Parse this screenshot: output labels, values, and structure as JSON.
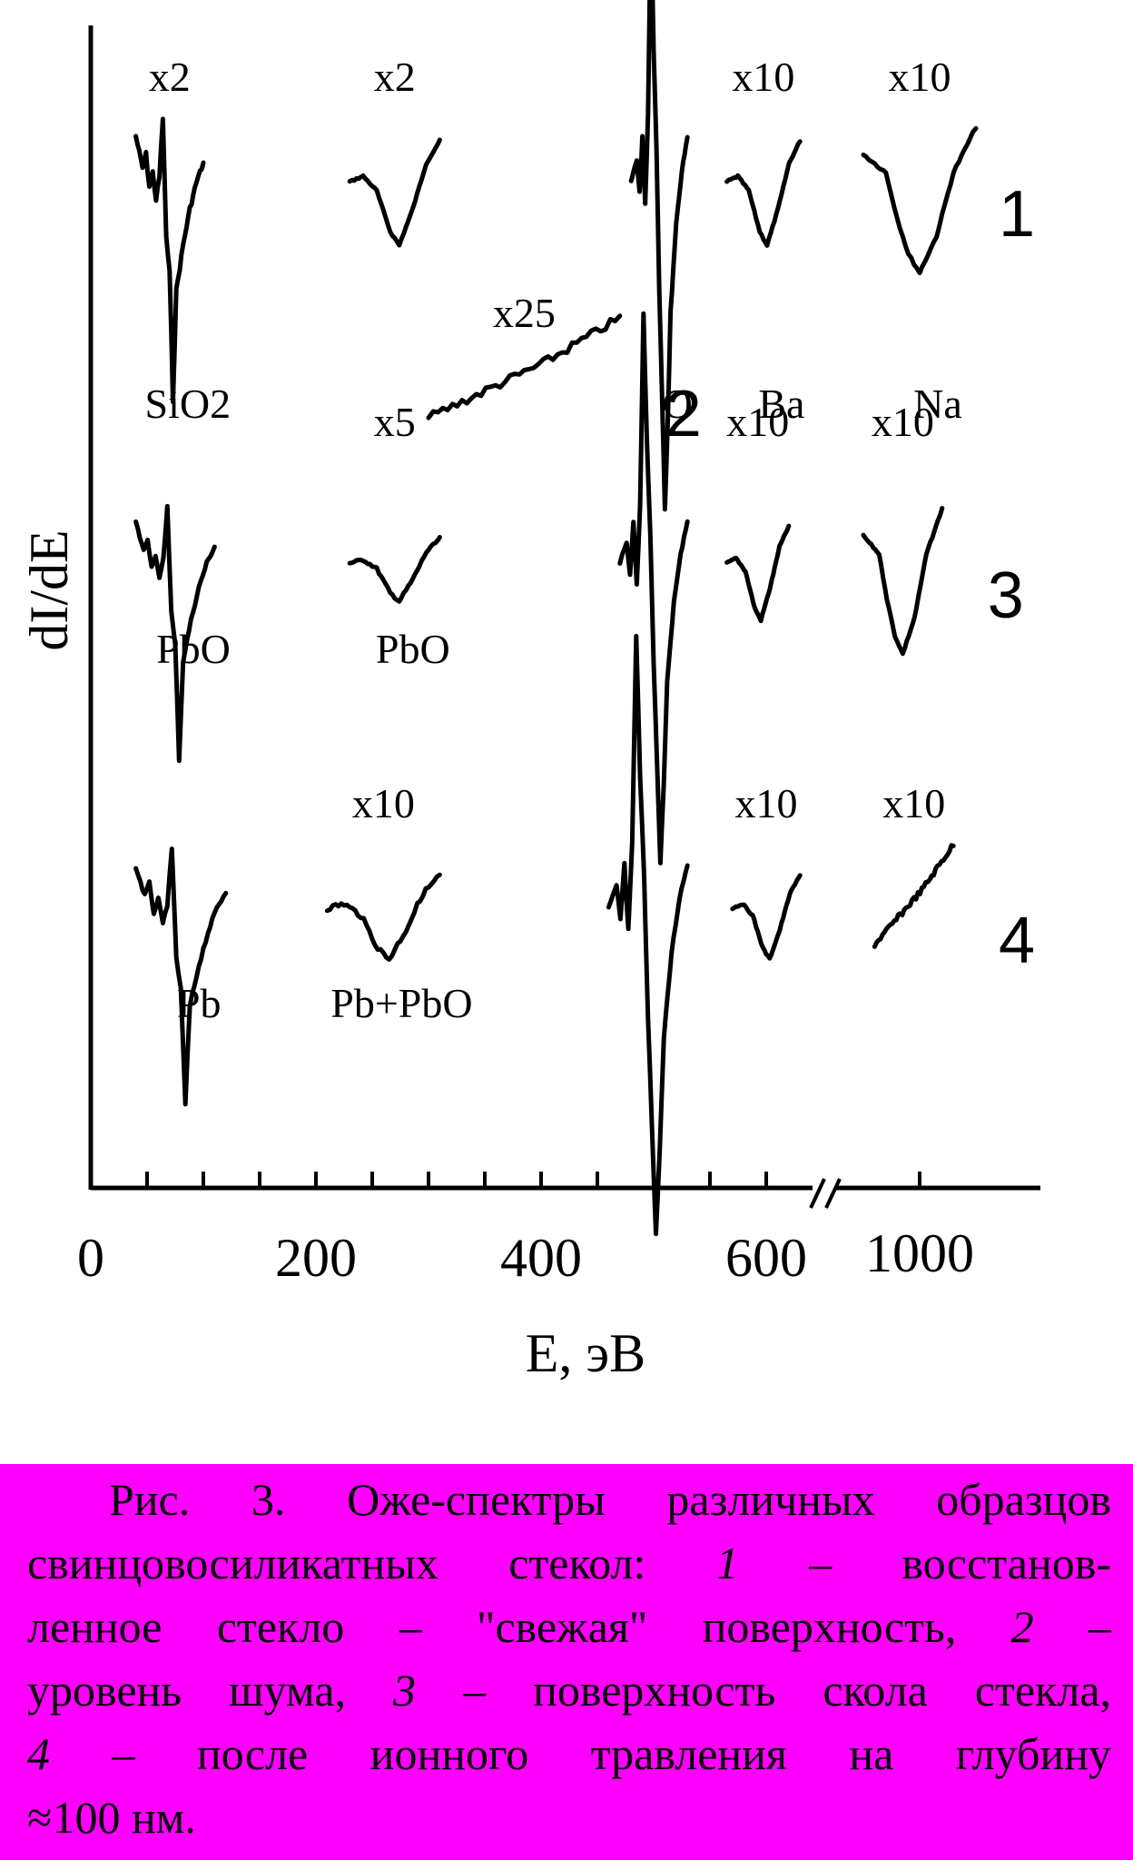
{
  "colors": {
    "caption_background": "#ff00ff",
    "ink": "#000000",
    "page": "#ffffff"
  },
  "chart_data": {
    "type": "line",
    "title": "",
    "xlabel": "E, эВ",
    "ylabel": "dI/dE",
    "x_ticks_left": [
      0,
      200,
      400,
      600
    ],
    "x_ticks_right": [
      1000
    ],
    "xlim": [
      0,
      1100
    ],
    "axis_break": "//",
    "grid": false,
    "series": [
      {
        "name": "1",
        "peaks": [
          {
            "label": "SiO2",
            "scale": "x2",
            "x_range": [
              40,
              100
            ]
          },
          {
            "label": "",
            "scale": "x2",
            "x_range": [
              230,
              310
            ]
          },
          {
            "label": "O",
            "scale": "",
            "x_range": [
              480,
              530
            ]
          },
          {
            "label": "Ba",
            "scale": "x10",
            "x_range": [
              565,
              630
            ]
          },
          {
            "label": "Na",
            "scale": "x10",
            "x_range": [
              950,
              1050
            ]
          }
        ]
      },
      {
        "name": "2",
        "peaks": [
          {
            "label": "",
            "scale": "x25",
            "x_range": [
              300,
              470
            ]
          }
        ]
      },
      {
        "name": "3",
        "peaks": [
          {
            "label": "PbO",
            "scale": "",
            "x_range": [
              40,
              110
            ]
          },
          {
            "label": "PbO",
            "scale": "x5",
            "x_range": [
              230,
              310
            ]
          },
          {
            "label": "",
            "scale": "",
            "x_range": [
              470,
              530
            ]
          },
          {
            "label": "",
            "scale": "x10",
            "x_range": [
              565,
              620
            ]
          },
          {
            "label": "",
            "scale": "x10",
            "x_range": [
              950,
              1020
            ]
          }
        ]
      },
      {
        "name": "4",
        "peaks": [
          {
            "label": "Pb",
            "scale": "",
            "x_range": [
              40,
              120
            ]
          },
          {
            "label": "Pb+PbO",
            "scale": "x10",
            "x_range": [
              210,
              310
            ]
          },
          {
            "label": "",
            "scale": "",
            "x_range": [
              460,
              530
            ]
          },
          {
            "label": "",
            "scale": "x10",
            "x_range": [
              570,
              630
            ]
          },
          {
            "label": "",
            "scale": "x10",
            "x_range": [
              960,
              1030
            ]
          }
        ]
      }
    ]
  },
  "caption": {
    "lines": [
      "Рис. 3. Оже-спектры различных образцов",
      "свинцовосиликатных стекол: ",
      "ленное стекло – \"свежая\" поверхность, ",
      "уровень шума, ",
      "",
      "≈100 нм."
    ],
    "n1": "1",
    "t1": " – восстанов-",
    "n2": "2",
    "t2": " –",
    "n3": "3",
    "t3": " – поверхность скола стекла,",
    "n4": "4",
    "t4": " – после ионного травления на глубину"
  }
}
